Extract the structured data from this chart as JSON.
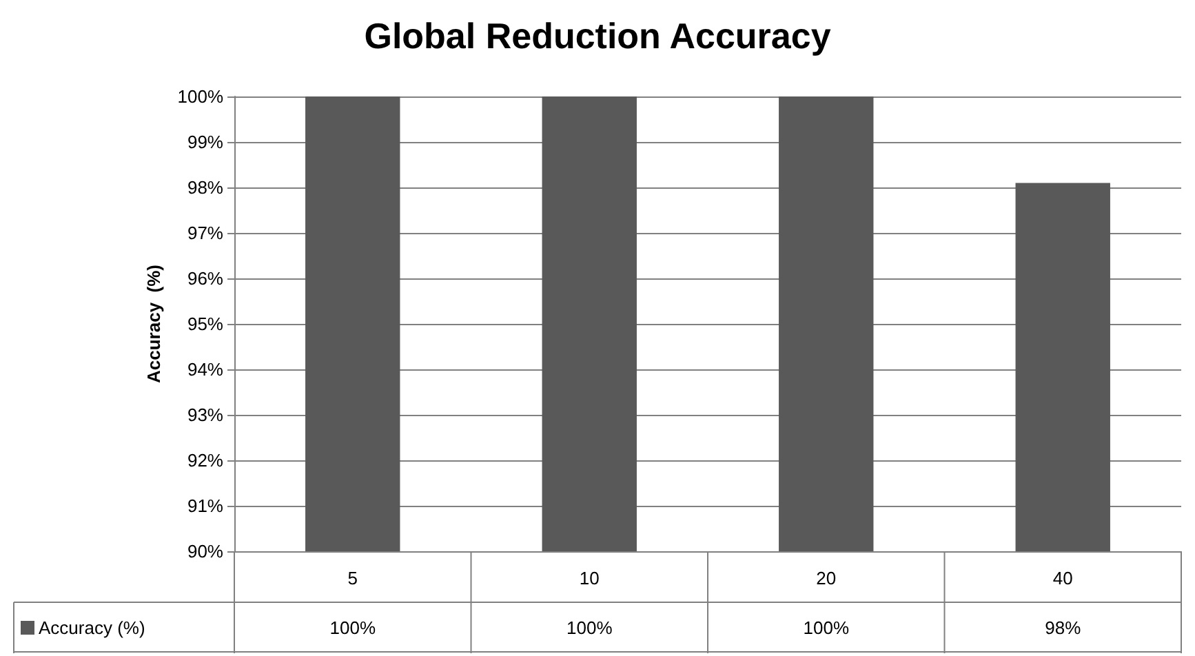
{
  "chart_data": {
    "type": "bar",
    "title": "Global Reduction Accuracy",
    "ylabel": "Accuracy  (%)",
    "categories": [
      "5",
      "10",
      "20",
      "40"
    ],
    "series": [
      {
        "name": "Accuracy (%)",
        "color": "#595959",
        "values": [
          100,
          100,
          100,
          98.1
        ],
        "value_labels": [
          "100%",
          "100%",
          "100%",
          "98%"
        ]
      }
    ],
    "ylim": [
      90,
      100
    ],
    "yticks": [
      {
        "value": 90,
        "label": "90%"
      },
      {
        "value": 91,
        "label": "91%"
      },
      {
        "value": 92,
        "label": "92%"
      },
      {
        "value": 93,
        "label": "93%"
      },
      {
        "value": 94,
        "label": "94%"
      },
      {
        "value": 95,
        "label": "95%"
      },
      {
        "value": 96,
        "label": "96%"
      },
      {
        "value": 97,
        "label": "97%"
      },
      {
        "value": 98,
        "label": "98%"
      },
      {
        "value": 99,
        "label": "99%"
      },
      {
        "value": 100,
        "label": "100%"
      }
    ],
    "grid": true,
    "legend": "bottom"
  }
}
